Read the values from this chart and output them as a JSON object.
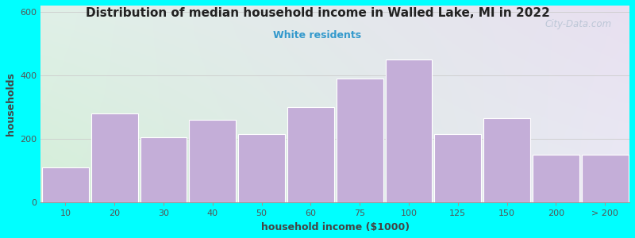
{
  "title": "Distribution of median household income in Walled Lake, MI in 2022",
  "subtitle": "White residents",
  "xlabel": "household income ($1000)",
  "ylabel": "households",
  "background_color": "#00FFFF",
  "plot_bg_color_topleft": "#d4eed8",
  "plot_bg_color_bottomright": "#e8e0f0",
  "bar_color": "#c4aed8",
  "bar_edge_color": "#ffffff",
  "title_color": "#222222",
  "subtitle_color": "#3399cc",
  "axis_label_color": "#444444",
  "tick_label_color": "#555555",
  "grid_color": "#cccccc",
  "watermark_color": "#aabbcc",
  "categories": [
    "10",
    "20",
    "30",
    "40",
    "50",
    "60",
    "75",
    "100",
    "125",
    "150",
    "200",
    "> 200"
  ],
  "values": [
    110,
    280,
    205,
    260,
    215,
    300,
    390,
    450,
    215,
    265,
    150,
    150
  ],
  "left_edges": [
    0,
    1,
    2,
    3,
    4,
    5,
    6,
    7,
    8,
    9,
    10,
    11
  ],
  "ylim": [
    0,
    620
  ],
  "yticks": [
    0,
    200,
    400,
    600
  ],
  "watermark": "City-Data.com"
}
